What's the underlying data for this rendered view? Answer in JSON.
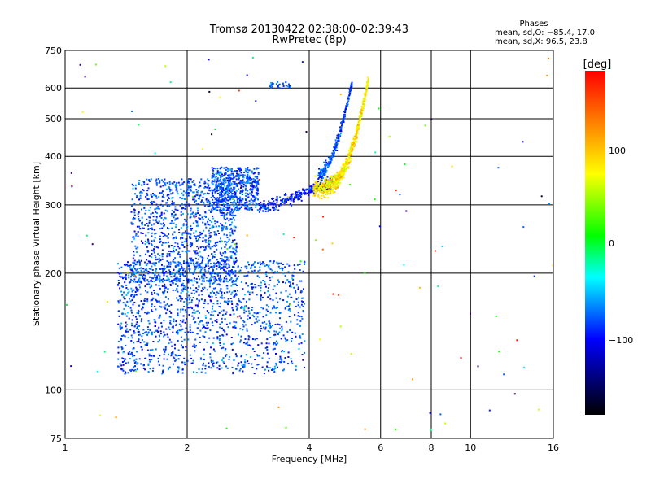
{
  "chart_data": {
    "type": "scatter",
    "title": "Tromsø 20130422 02:38:00–02:39:43",
    "subtitle": "RwPretec (8p)",
    "xlabel": "Frequency [MHz]",
    "ylabel": "Stationary phase Virtual Height [km]",
    "x_scale": "log2",
    "y_scale": "log",
    "xlim": [
      1,
      16
    ],
    "ylim": [
      75,
      750
    ],
    "x_ticks": [
      1,
      2,
      4,
      6,
      8,
      10,
      16
    ],
    "x_tick_labels": [
      "1",
      "2",
      "4",
      "6",
      "8",
      "10",
      "16"
    ],
    "x_gridlines": [
      2,
      4,
      6,
      8,
      10
    ],
    "y_ticks": [
      75,
      100,
      200,
      300,
      400,
      500,
      600,
      750
    ],
    "y_tick_labels": [
      "75",
      "100",
      "200",
      "300",
      "400",
      "500",
      "600",
      "750"
    ],
    "y_gridlines": [
      100,
      200,
      300,
      400,
      500,
      600
    ],
    "grid": true,
    "legend": {
      "title": "Phases",
      "lines": [
        "mean, sd,O: −85.4, 17.0",
        "mean, sd,X:  96.5, 23.8"
      ]
    },
    "colorbar": {
      "label": "[deg]",
      "range": [
        -180,
        180
      ],
      "ticks": [
        100,
        0,
        -100
      ],
      "tick_labels": [
        "100",
        "0",
        "−100"
      ],
      "colors": [
        "#ff0000",
        "#ff8800",
        "#ffff00",
        "#00ff00",
        "#00ffff",
        "#0000ff",
        "#000000"
      ]
    },
    "series": [
      {
        "region": "lower F-layer trace (O-mode)",
        "freq_range": [
          1.1,
          3.9
        ],
        "height_range": [
          100,
          380
        ],
        "phase_mean": -85.4,
        "phase_sd": 17.0,
        "approx_points": 3000
      },
      {
        "region": "upper F-layer trace (X-mode)",
        "freq_range": [
          3.0,
          5.6
        ],
        "height_range": [
          290,
          650
        ],
        "phase_mean": 96.5,
        "phase_sd": 23.8,
        "approx_points": 900
      },
      {
        "region": "scattered noise",
        "freq_range": [
          1.0,
          16.0
        ],
        "height_range": [
          75,
          750
        ],
        "approx_points": 120
      }
    ]
  }
}
